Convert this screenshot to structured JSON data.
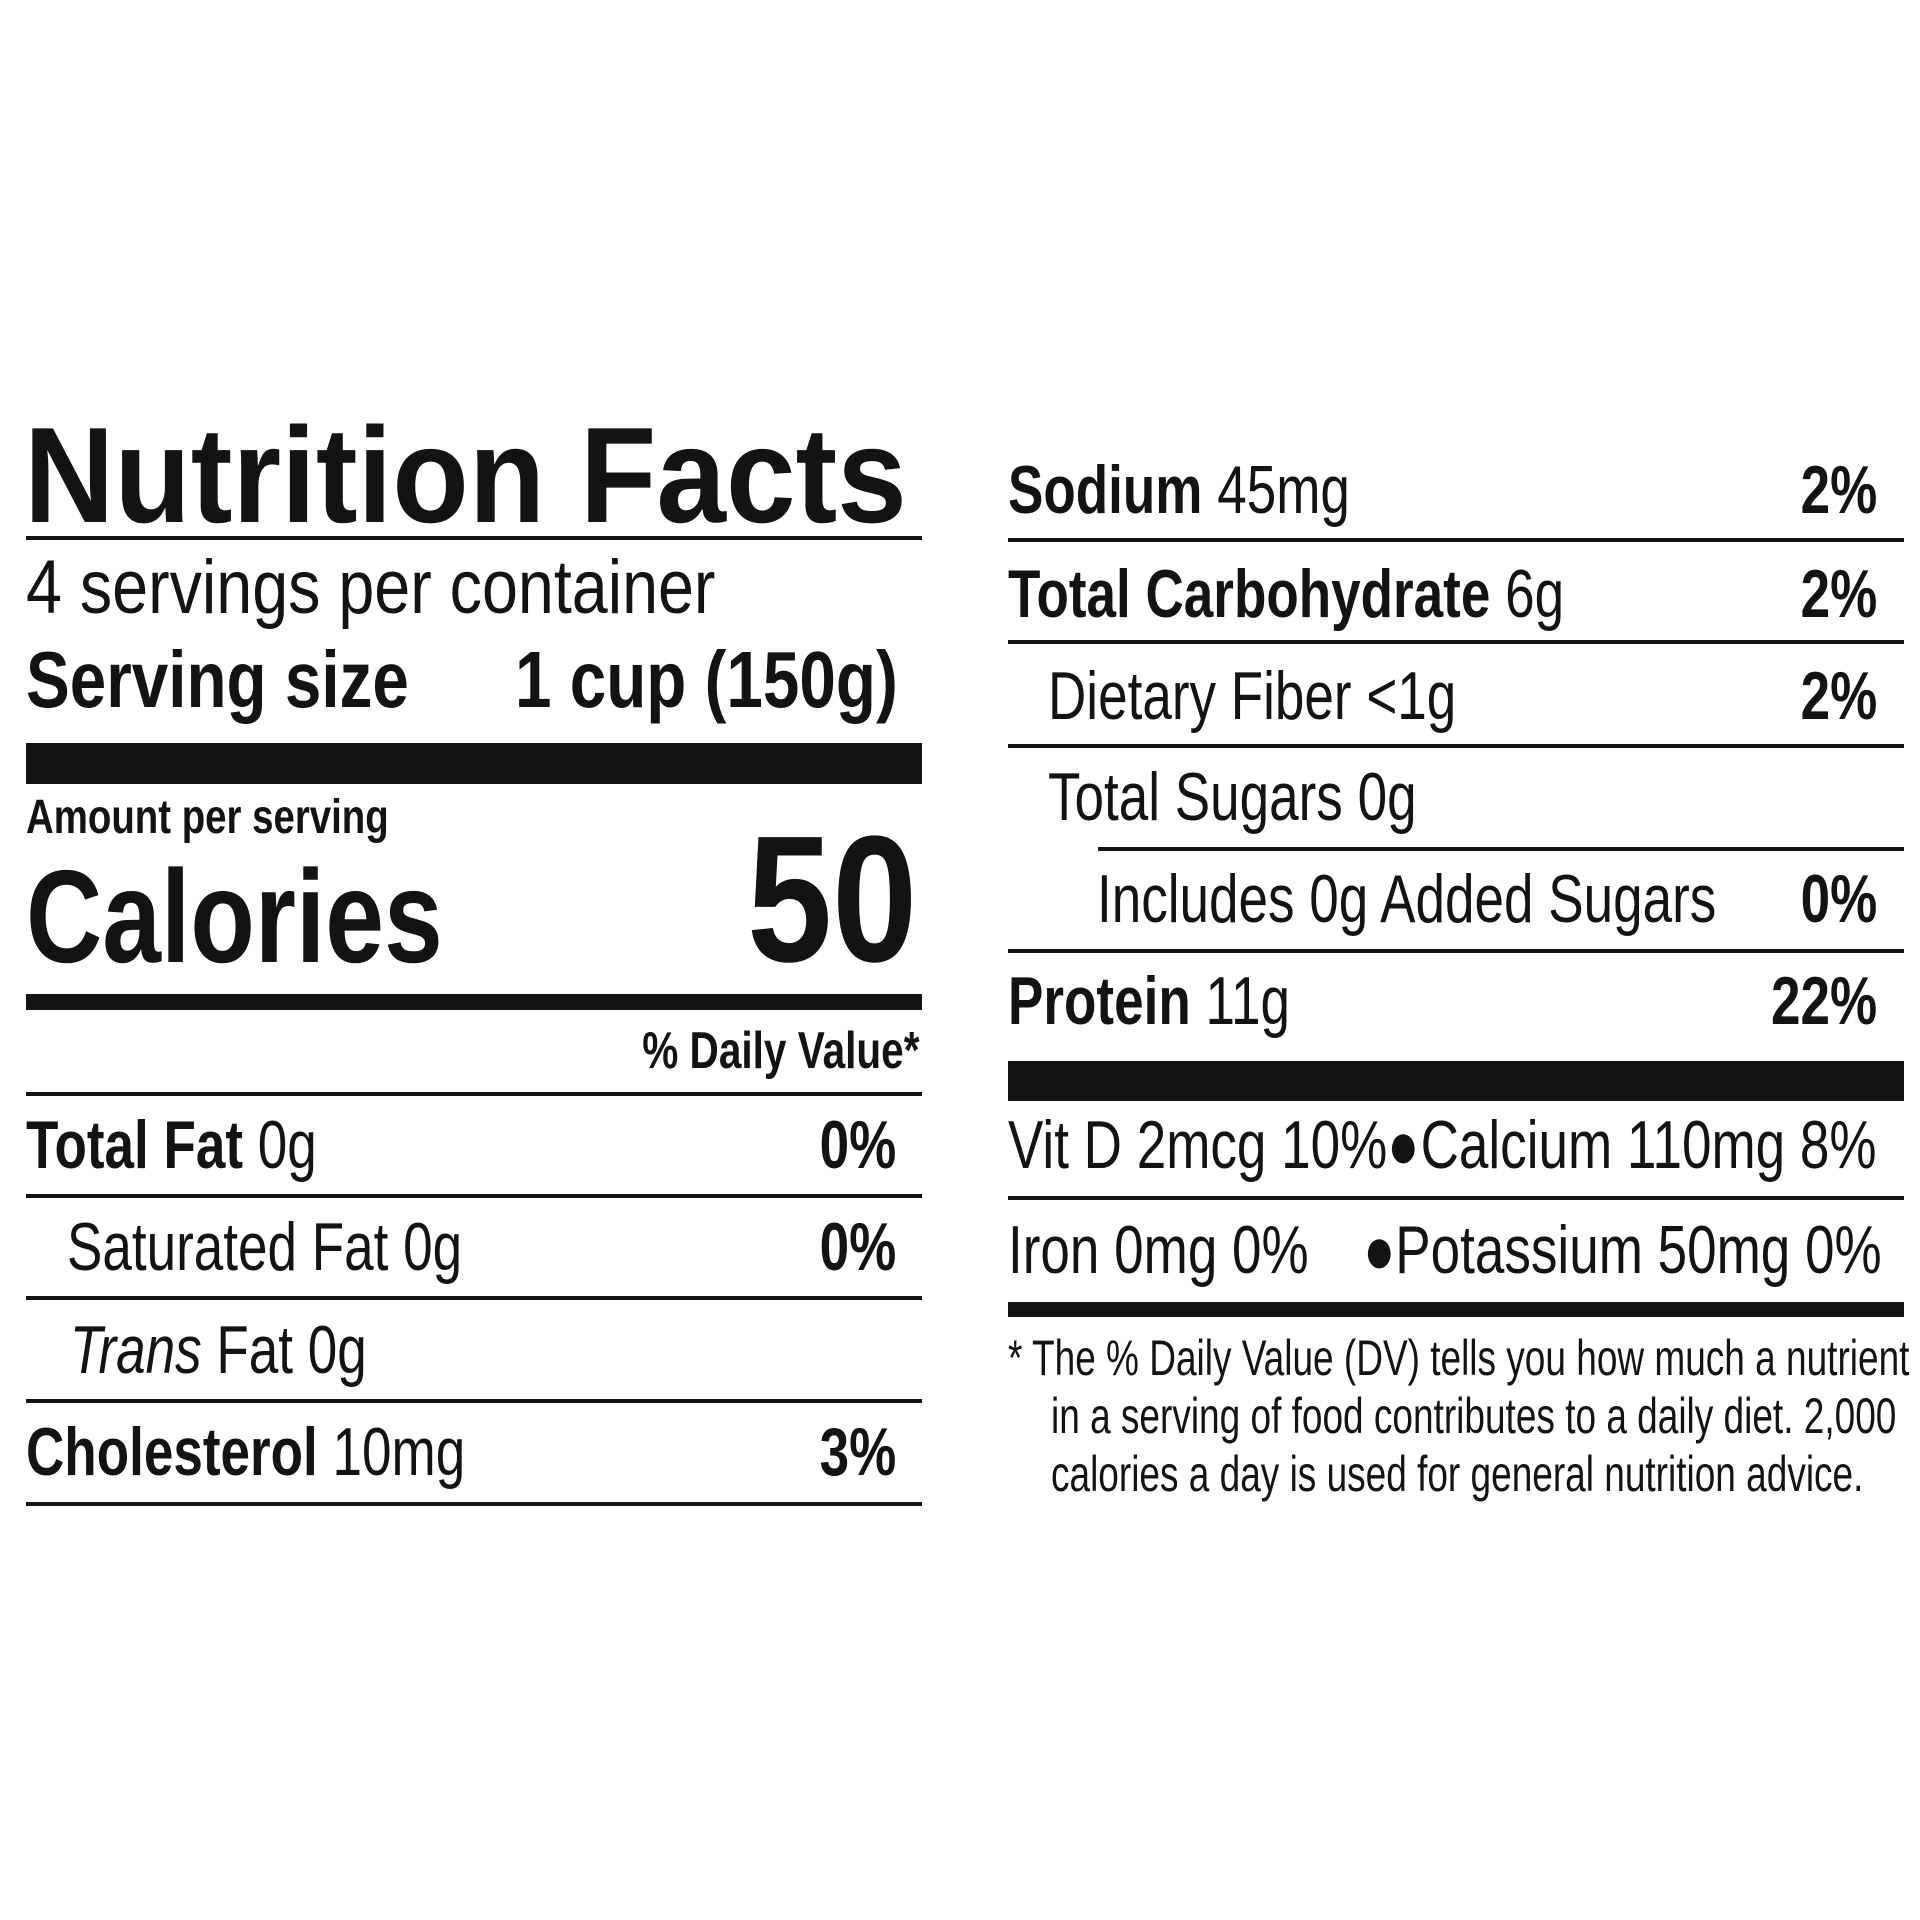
{
  "title": "Nutrition Facts",
  "servings_per_container": "4 servings per container",
  "serving_size": {
    "label": "Serving size",
    "value": "1 cup (150g)"
  },
  "amount_per_serving": "Amount per serving",
  "calories": {
    "label": "Calories",
    "value": "50"
  },
  "daily_value_header": "% Daily Value*",
  "nutrients_left": [
    {
      "name": "Total Fat",
      "amount": "0g",
      "dv": "0%"
    },
    {
      "name": "Saturated Fat",
      "amount": "0g",
      "dv": "0%"
    },
    {
      "name": "Trans",
      "name_suffix": "Fat",
      "amount": "0g",
      "dv": ""
    },
    {
      "name": "Cholesterol",
      "amount": "10mg",
      "dv": "3%"
    }
  ],
  "nutrients_right": [
    {
      "name": "Sodium",
      "amount": "45mg",
      "dv": "2%"
    },
    {
      "name": "Total Carbohydrate",
      "amount": "6g",
      "dv": "2%"
    },
    {
      "name": "Dietary Fiber",
      "amount": "<1g",
      "dv": "2%"
    },
    {
      "name": "Total Sugars",
      "amount": "0g",
      "dv": ""
    },
    {
      "name": "Includes 0g Added Sugars",
      "amount": "",
      "dv": "0%"
    },
    {
      "name": "Protein",
      "amount": "11g",
      "dv": "22%"
    }
  ],
  "vitamins": {
    "vit_d": "Vit D 2mcg 10%",
    "calcium": "Calcium 110mg 8%",
    "iron": "Iron 0mg 0%",
    "potassium": "Potassium 50mg 0%",
    "bullet": "●"
  },
  "footnote": [
    "* The % Daily Value (DV) tells you how much a nutrient",
    "in a serving of food contributes to a daily diet. 2,000",
    "calories a day is used for general nutrition advice."
  ]
}
